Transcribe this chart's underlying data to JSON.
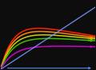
{
  "background_color": "#0d0d0d",
  "lines": [
    {
      "color": "#ff2200",
      "pmax": 0.8,
      "ki": 0.15,
      "alpha": 1.0
    },
    {
      "color": "#ff8800",
      "pmax": 0.72,
      "ki": 0.13,
      "alpha": 1.0
    },
    {
      "color": "#cccc00",
      "pmax": 0.63,
      "ki": 0.1,
      "alpha": 1.0
    },
    {
      "color": "#44bb00",
      "pmax": 0.54,
      "ki": 0.07,
      "alpha": 1.0
    },
    {
      "color": "#cc00cc",
      "pmax": 0.38,
      "ki": 0.03,
      "alpha": 1.0
    }
  ],
  "linear_color": "#7799ff",
  "linear_slope": 0.95,
  "k_sat": 7.0,
  "xlim": [
    0,
    1.0
  ],
  "ylim": [
    0,
    1.05
  ],
  "arrow_color": "#5588ff",
  "axis_color": "#666666"
}
